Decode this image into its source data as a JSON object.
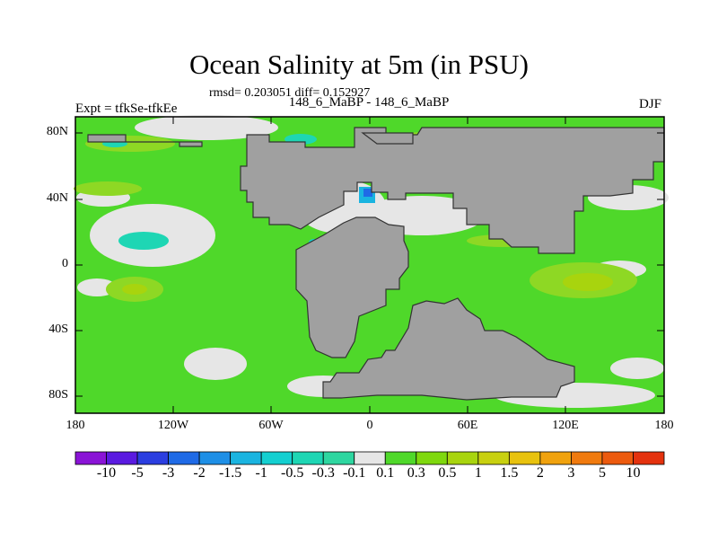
{
  "title": "Ocean Salinity at 5m (in PSU)",
  "subtitle": "rmsd= 0.203051 diff= 0.152927",
  "center_label": "148_6_MaBP - 148_6_MaBP",
  "left_label": "Expt = tfkSe-tfkEe",
  "right_label": "DJF",
  "y_ticks": [
    "80N",
    "40N",
    "0",
    "40S",
    "80S"
  ],
  "x_ticks": [
    "180",
    "120W",
    "60W",
    "0",
    "60E",
    "120E",
    "180"
  ],
  "colorbar": {
    "labels": [
      "-10",
      "-5",
      "-3",
      "-2",
      "-1.5",
      "-1",
      "-0.5",
      "-0.3",
      "-0.1",
      "0.1",
      "0.3",
      "0.5",
      "1",
      "1.5",
      "2",
      "3",
      "5",
      "10"
    ],
    "colors": [
      "#8a14d6",
      "#5a1ae0",
      "#2b3ee0",
      "#1f6ae6",
      "#1e8fe6",
      "#1ab4e0",
      "#14cfd0",
      "#1ed6b4",
      "#2ed6a0",
      "#e6e6e6",
      "#4fd82a",
      "#7fd80e",
      "#a8d40e",
      "#c8d010",
      "#e8c20e",
      "#f0a20e",
      "#f07a0e",
      "#ec5a0e",
      "#e4320e"
    ]
  },
  "map_colors": {
    "land": "#a0a0a0",
    "ocean_green": "#4fd82a",
    "near_zero": "#e6e6e6",
    "light_green": "#8ed824",
    "yellow_green": "#c8d010",
    "cyan": "#14cfd0",
    "blue": "#1f6ae6"
  }
}
